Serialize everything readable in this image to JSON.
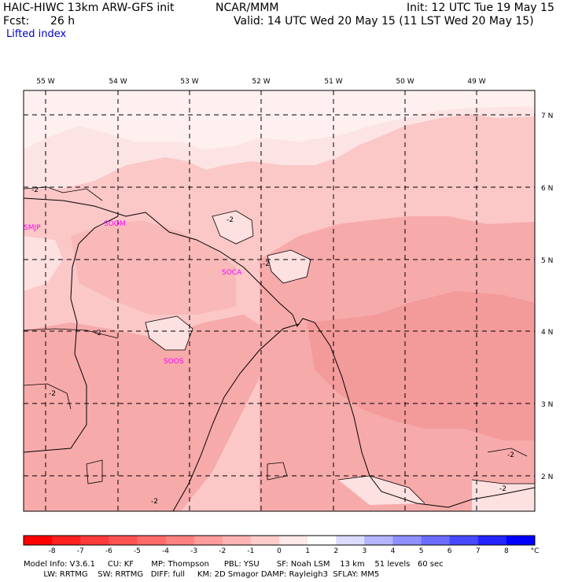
{
  "header": {
    "model_title": "HAIC-HIWC 13km ARW-GFS init",
    "org": "NCAR/MMM",
    "init": "Init: 12 UTC Tue 19 May 15",
    "fcst_label": "Fcst:",
    "fcst_value": "26 h",
    "valid": "Valid: 14 UTC Wed 20 May 15 (11 LST Wed 20 May 15)",
    "field": "Lifted index"
  },
  "map": {
    "lon_labels": [
      "55 W",
      "54 W",
      "53 W",
      "52 W",
      "51 W",
      "50 W",
      "49 W"
    ],
    "lat_labels": [
      "7 N",
      "6 N",
      "5 N",
      "4 N",
      "3 N",
      "2 N"
    ],
    "stations": [
      "SMJP",
      "SOOM",
      "SOCA",
      "SOOS"
    ],
    "contour_label": "-2",
    "colors": {
      "background": "#fde0e0",
      "top_light": "#fff0f0",
      "mid": "#fbc7c7",
      "dark": "#f7a5a5",
      "darker": "#f49090",
      "station": "#ff00ff"
    }
  },
  "colorbar": {
    "ticks": [
      "-8",
      "-7",
      "-6",
      "-5",
      "-4",
      "-3",
      "-2",
      "-1",
      "0",
      "1",
      "2",
      "3",
      "4",
      "5",
      "6",
      "7",
      "8"
    ],
    "unit": "°C",
    "colors": [
      "#ff0000",
      "#ff2020",
      "#ff3a3a",
      "#ff5252",
      "#ff6a6a",
      "#ff8282",
      "#ff9c9c",
      "#ffb4b4",
      "#ffcccc",
      "#ffe8e8",
      "#ffffff",
      "#dcdcff",
      "#b4b4ff",
      "#9090ff",
      "#6c6cff",
      "#4848ff",
      "#2424ff",
      "#0000ff"
    ]
  },
  "footer": {
    "line1": "Model Info: V3.6.1     CU: KF       MP: Thompson      PBL: YSU       SF: Noah LSM    13 km    51 levels   60 sec",
    "line2": "        LW: RRTMG    SW: RRTMG   DIFF: full     KM: 2D Smagor DAMP: Rayleigh3  SFLAY: MM5"
  }
}
